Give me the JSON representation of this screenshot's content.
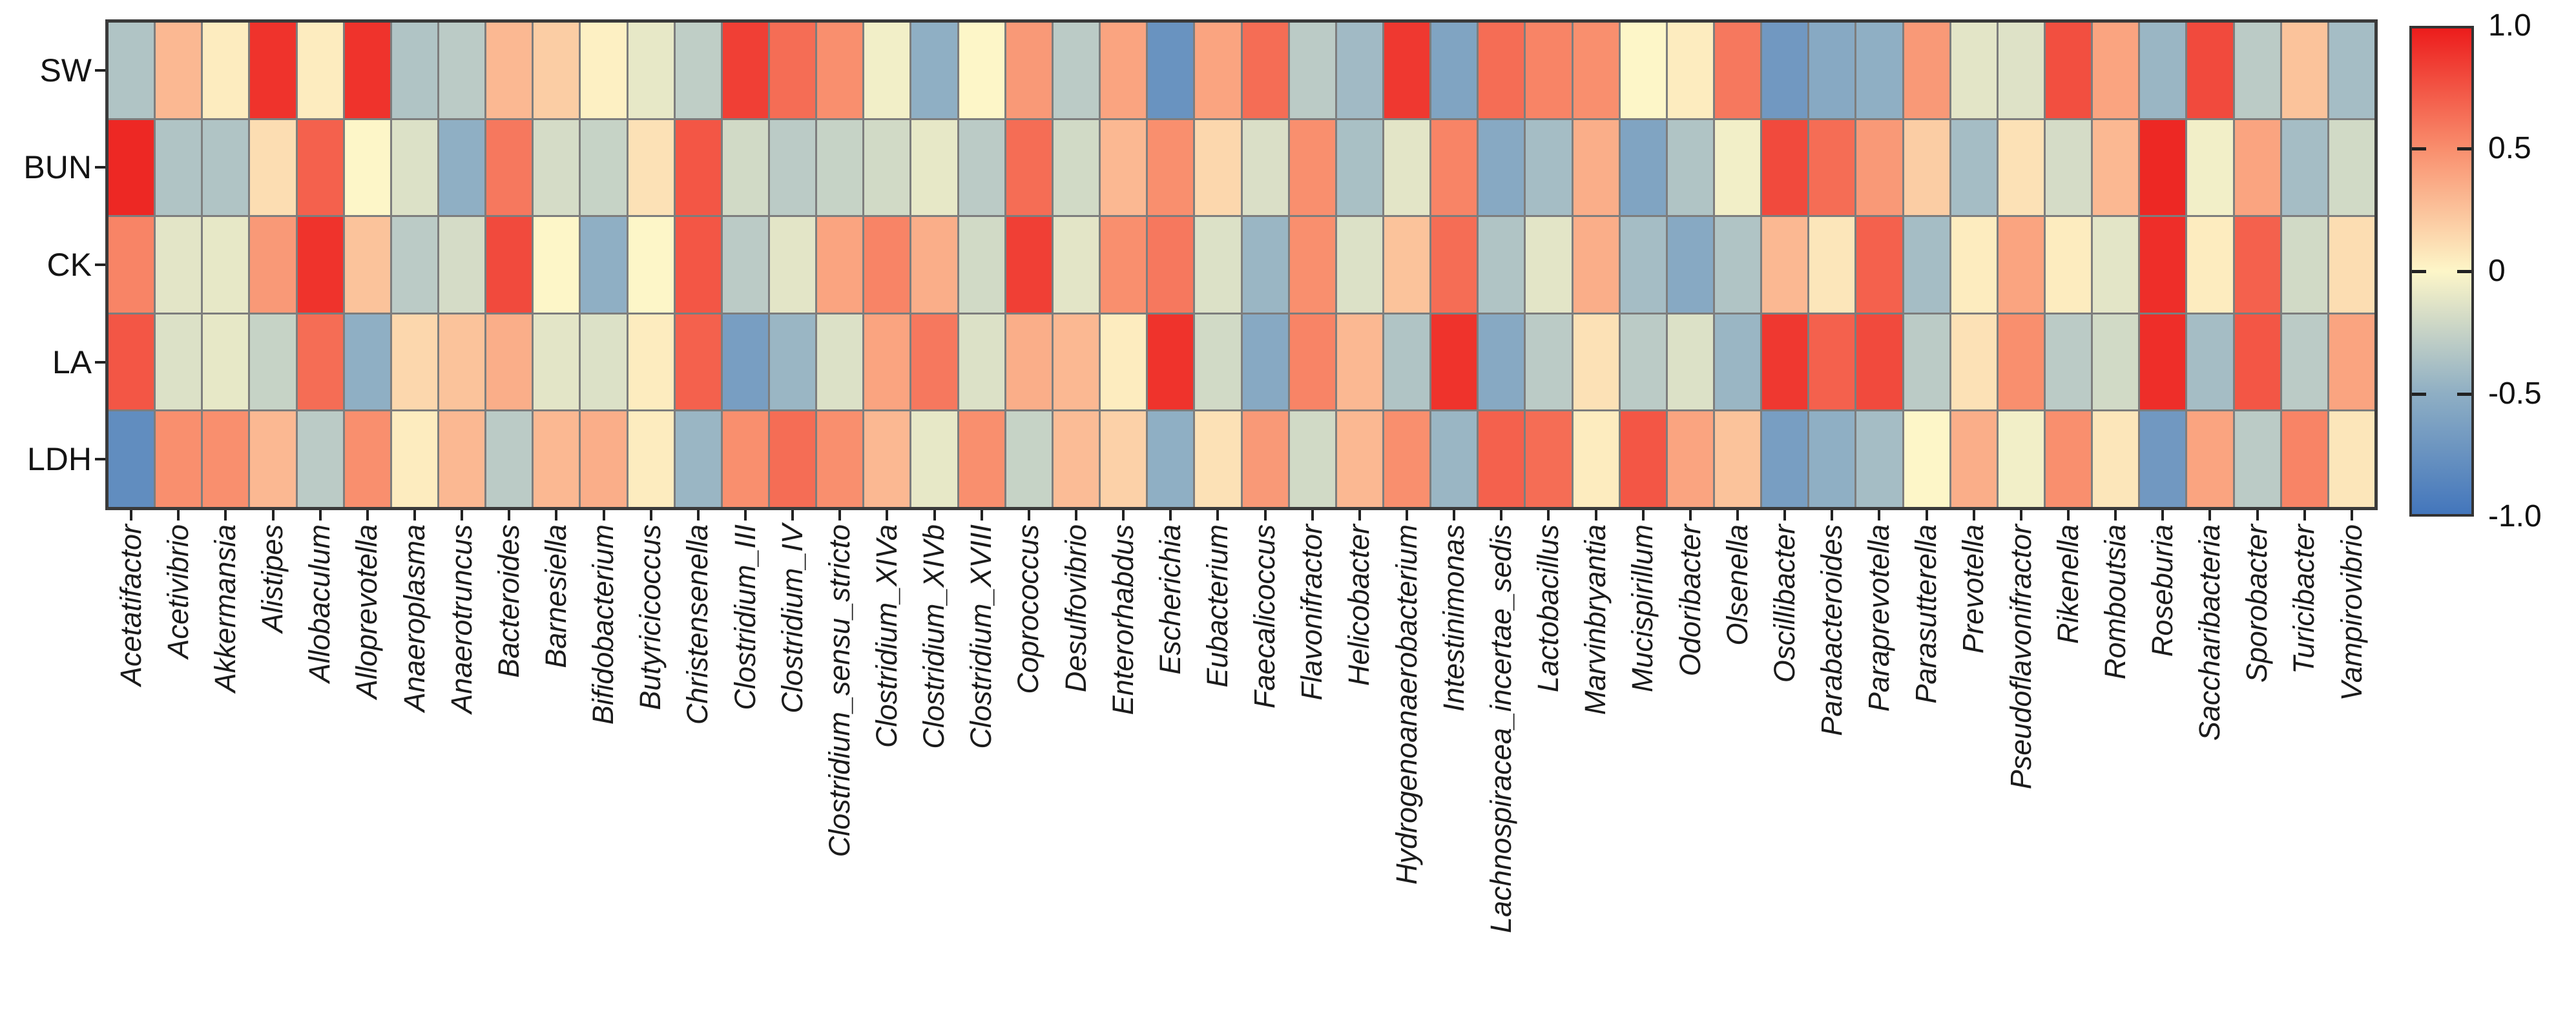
{
  "chart_data": {
    "type": "heatmap",
    "title": "",
    "rows": [
      "SW",
      "BUN",
      "CK",
      "LA",
      "LDH"
    ],
    "columns": [
      "Acetatifactor",
      "Acetivibrio",
      "Akkermansia",
      "Alistipes",
      "Allobaculum",
      "Alloprevotella",
      "Anaeroplasma",
      "Anaerotruncus",
      "Bacteroides",
      "Barnesiella",
      "Bifidobacterium",
      "Butyricicoccus",
      "Christensenella",
      "Clostridium_III",
      "Clostridium_IV",
      "Clostridium_sensu_stricto",
      "Clostridium_XIVa",
      "Clostridium_XIVb",
      "Clostridium_XVIII",
      "Coprococcus",
      "Desulfovibrio",
      "Enterorhabdus",
      "Escherichia",
      "Eubacterium",
      "Faecalicoccus",
      "Flavonifractor",
      "Helicobacter",
      "Hydrogenoanaerobacterium",
      "Intestinimonas",
      "Lachnospiracea_incertae_sedis",
      "Lactobacillus",
      "Marvinbryantia",
      "Mucispirillum",
      "Odoribacter",
      "Olsenella",
      "Oscillibacter",
      "Parabacteroides",
      "Paraprevotella",
      "Parasutterella",
      "Prevotella",
      "Pseudoflavonifractor",
      "Rikenella",
      "Romboutsia",
      "Roseburia",
      "Saccharibacteria",
      "Sporobacter",
      "Turicibacter",
      "Vampirovibrio"
    ],
    "values": {
      "SW": [
        -0.35,
        0.3,
        0.05,
        0.9,
        0.05,
        0.9,
        -0.35,
        -0.3,
        0.3,
        0.2,
        0.03,
        -0.1,
        -0.28,
        0.85,
        0.65,
        0.5,
        -0.05,
        -0.5,
        0.0,
        0.45,
        -0.3,
        0.4,
        -0.75,
        0.4,
        0.65,
        -0.3,
        -0.42,
        0.88,
        -0.6,
        0.65,
        0.55,
        0.5,
        0.0,
        0.05,
        0.6,
        -0.7,
        -0.55,
        -0.5,
        0.45,
        -0.12,
        -0.14,
        0.78,
        0.4,
        -0.45,
        0.8,
        -0.3,
        0.25,
        -0.4
      ],
      "BUN": [
        0.95,
        -0.35,
        -0.35,
        0.12,
        0.7,
        0.0,
        -0.15,
        -0.5,
        0.6,
        -0.18,
        -0.25,
        0.1,
        0.75,
        -0.2,
        -0.3,
        -0.25,
        -0.2,
        -0.1,
        -0.3,
        0.65,
        -0.2,
        0.3,
        0.5,
        0.15,
        -0.16,
        0.5,
        -0.38,
        -0.12,
        0.55,
        -0.55,
        -0.4,
        0.35,
        -0.6,
        -0.35,
        -0.05,
        0.8,
        0.65,
        0.45,
        0.2,
        -0.4,
        0.1,
        -0.18,
        0.3,
        0.95,
        -0.05,
        0.4,
        -0.4,
        -0.2
      ],
      "CK": [
        0.55,
        -0.12,
        -0.1,
        0.45,
        0.9,
        0.25,
        -0.3,
        -0.18,
        0.8,
        0.0,
        -0.5,
        0.0,
        0.75,
        -0.3,
        -0.12,
        0.4,
        0.55,
        0.35,
        -0.2,
        0.85,
        -0.12,
        0.5,
        0.6,
        -0.15,
        -0.45,
        0.5,
        -0.15,
        0.25,
        0.65,
        -0.35,
        -0.12,
        0.35,
        -0.4,
        -0.55,
        -0.35,
        0.3,
        0.08,
        0.7,
        -0.4,
        0.05,
        0.4,
        0.05,
        -0.12,
        0.92,
        0.05,
        0.7,
        -0.2,
        0.12
      ],
      "LA": [
        0.75,
        -0.15,
        -0.1,
        -0.25,
        0.65,
        -0.5,
        0.15,
        0.25,
        0.35,
        -0.12,
        -0.15,
        0.05,
        0.7,
        -0.65,
        -0.45,
        -0.15,
        0.4,
        0.6,
        -0.15,
        0.35,
        0.3,
        0.05,
        0.9,
        -0.2,
        -0.55,
        0.55,
        0.3,
        -0.35,
        0.9,
        -0.55,
        -0.3,
        0.1,
        -0.3,
        -0.15,
        -0.45,
        0.88,
        0.7,
        0.8,
        -0.3,
        0.1,
        0.5,
        -0.3,
        -0.2,
        0.92,
        -0.4,
        0.75,
        -0.3,
        0.4
      ],
      "LDH": [
        -0.8,
        0.5,
        0.5,
        0.3,
        -0.3,
        0.5,
        0.05,
        0.3,
        -0.3,
        0.3,
        0.35,
        0.05,
        -0.45,
        0.5,
        0.65,
        0.5,
        0.3,
        -0.1,
        0.5,
        -0.25,
        0.28,
        0.18,
        -0.5,
        0.1,
        0.45,
        -0.2,
        0.3,
        0.5,
        -0.45,
        0.7,
        0.65,
        0.05,
        0.75,
        0.4,
        0.25,
        -0.65,
        -0.5,
        -0.4,
        0.0,
        0.35,
        -0.05,
        0.5,
        0.08,
        -0.7,
        0.4,
        -0.3,
        0.55,
        0.08
      ]
    },
    "colorscale": {
      "min": -1,
      "max": 1,
      "stops": [
        {
          "value": -1.0,
          "color": "#4376BC"
        },
        {
          "value": -0.5,
          "color": "#8FAFC4"
        },
        {
          "value": 0.0,
          "color": "#FDF6C8"
        },
        {
          "value": 0.5,
          "color": "#F98F6E"
        },
        {
          "value": 1.0,
          "color": "#EC1C1C"
        }
      ]
    },
    "legend": {
      "position": "right",
      "ticks": [
        "1.0",
        "0.5",
        "0",
        "-0.5",
        "-1.0"
      ]
    },
    "grid_line_color": "#7d7d7d",
    "border_color": "#3a3a3a"
  }
}
